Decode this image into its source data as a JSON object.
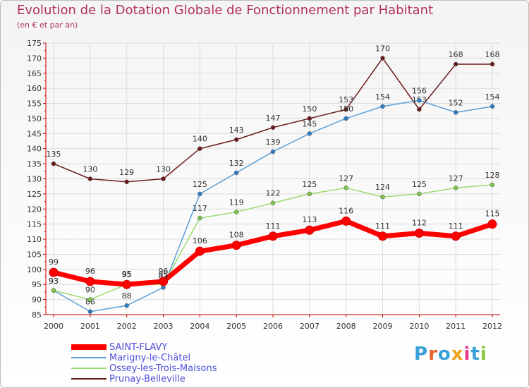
{
  "title": "Evolution de la Dotation Globale de Fonctionnement par Habitant",
  "subtitle": "(en € et par an)",
  "logo": {
    "text": "Proxiti",
    "letter_colors": [
      "#3aa0d8",
      "#e8632b",
      "#3aa0d8",
      "#f0a21a",
      "#e83a8a",
      "#3aa0d8",
      "#8bc53f"
    ]
  },
  "chart_data": {
    "type": "line",
    "title": "Evolution de la Dotation Globale de Fonctionnement par Habitant",
    "ylabel": "(en € et par an)",
    "xlabel": "",
    "x": [
      2000,
      2001,
      2002,
      2003,
      2004,
      2005,
      2006,
      2007,
      2008,
      2009,
      2010,
      2011,
      2012
    ],
    "ylim": [
      85,
      175
    ],
    "yticks": [
      85,
      90,
      95,
      100,
      105,
      110,
      115,
      120,
      125,
      130,
      135,
      140,
      145,
      150,
      155,
      160,
      165,
      170,
      175
    ],
    "grid": true,
    "legend_position": "bottom-left",
    "series": [
      {
        "name": "Prunay-Belleville",
        "color": "#6b1a1a",
        "dot": "#6b1a1a",
        "bold": false,
        "values": [
          135,
          130,
          129,
          130,
          140,
          143,
          147,
          150,
          153,
          170,
          153,
          168,
          168
        ]
      },
      {
        "name": "Marigny-le-Châtel",
        "color": "#5b9fd6",
        "dot": "#2f7cc2",
        "bold": false,
        "values": [
          93,
          86,
          88,
          94,
          125,
          132,
          139,
          145,
          150,
          154,
          156,
          152,
          154
        ]
      },
      {
        "name": "Ossey-les-Trois-Maisons",
        "color": "#9bdc6e",
        "dot": "#7cc44c",
        "bold": false,
        "values": [
          93,
          90,
          95,
          95,
          117,
          119,
          122,
          125,
          127,
          124,
          125,
          127,
          128
        ]
      },
      {
        "name": "SAINT-FLAVY",
        "color": "#ff0000",
        "dot": "#ff0000",
        "bold": true,
        "values": [
          99,
          96,
          95,
          96,
          106,
          108,
          111,
          113,
          116,
          111,
          112,
          111,
          115
        ]
      }
    ],
    "legend_order": [
      "SAINT-FLAVY",
      "Marigny-le-Châtel",
      "Ossey-les-Trois-Maisons",
      "Prunay-Belleville"
    ]
  }
}
